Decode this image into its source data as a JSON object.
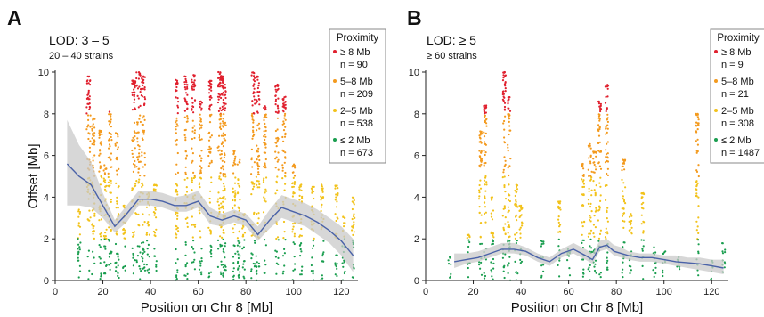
{
  "figure": {
    "ylabel": "Offset [Mb]",
    "xlabel": "Position on Chr 8 [Mb]",
    "legend_title": "Proximity",
    "colors": {
      "gt8": "#e0202e",
      "5to8": "#f39a1e",
      "2to5": "#f2c21b",
      "le2": "#1a9e4f",
      "fit": "#4a62a8",
      "ci": "#c9c9c9"
    }
  },
  "chart_data": [
    {
      "type": "scatter",
      "panel_letter": "A",
      "title": "LOD: 3 – 5",
      "subtitle": "20 – 40 strains",
      "xlabel": "Position on Chr 8 [Mb]",
      "ylabel": "Offset [Mb]",
      "xlim": [
        0,
        127
      ],
      "ylim": [
        0,
        10
      ],
      "xticks": [
        "0",
        "20",
        "40",
        "60",
        "80",
        "100",
        "120"
      ],
      "yticks": [
        "0",
        "2",
        "4",
        "6",
        "8",
        "10"
      ],
      "legend_position": "top-right",
      "legend": [
        {
          "label": "≥ 8  Mb",
          "count": "n = 90"
        },
        {
          "label": "5–8  Mb",
          "count": "n = 209"
        },
        {
          "label": "2–5  Mb",
          "count": "n = 538"
        },
        {
          "label": "≤ 2  Mb",
          "count": "n = 673"
        }
      ],
      "clusters": [
        {
          "x": 10,
          "max": 3.5,
          "w": 0.6
        },
        {
          "x": 14,
          "max": 9.8,
          "w": 0.8
        },
        {
          "x": 16,
          "max": 7.8,
          "w": 0.6
        },
        {
          "x": 19,
          "max": 7.2,
          "w": 0.6
        },
        {
          "x": 21,
          "max": 5.6,
          "w": 0.6
        },
        {
          "x": 23,
          "max": 8.1,
          "w": 0.7
        },
        {
          "x": 26,
          "max": 7.2,
          "w": 0.8
        },
        {
          "x": 29,
          "max": 3.6,
          "w": 0.6
        },
        {
          "x": 33,
          "max": 9.6,
          "w": 0.8
        },
        {
          "x": 35,
          "max": 10.0,
          "w": 1.0
        },
        {
          "x": 37,
          "max": 9.8,
          "w": 0.8
        },
        {
          "x": 39,
          "max": 4.2,
          "w": 0.6
        },
        {
          "x": 42,
          "max": 4.6,
          "w": 0.6
        },
        {
          "x": 51,
          "max": 9.8,
          "w": 0.6
        },
        {
          "x": 55,
          "max": 9.8,
          "w": 0.7
        },
        {
          "x": 58,
          "max": 9.9,
          "w": 0.7
        },
        {
          "x": 61,
          "max": 8.6,
          "w": 0.6
        },
        {
          "x": 65,
          "max": 9.6,
          "w": 0.7
        },
        {
          "x": 69,
          "max": 10.0,
          "w": 0.8
        },
        {
          "x": 70,
          "max": 9.8,
          "w": 0.6
        },
        {
          "x": 71,
          "max": 9.4,
          "w": 0.6
        },
        {
          "x": 75,
          "max": 6.3,
          "w": 0.6
        },
        {
          "x": 77,
          "max": 5.8,
          "w": 0.6
        },
        {
          "x": 79,
          "max": 3.2,
          "w": 0.6
        },
        {
          "x": 83,
          "max": 10.0,
          "w": 0.8
        },
        {
          "x": 85,
          "max": 9.8,
          "w": 0.7
        },
        {
          "x": 88,
          "max": 8.4,
          "w": 0.6
        },
        {
          "x": 93,
          "max": 9.4,
          "w": 0.7
        },
        {
          "x": 96,
          "max": 8.9,
          "w": 0.7
        },
        {
          "x": 100,
          "max": 5.6,
          "w": 0.6
        },
        {
          "x": 103,
          "max": 4.6,
          "w": 0.6
        },
        {
          "x": 108,
          "max": 4.6,
          "w": 0.6
        },
        {
          "x": 112,
          "max": 4.6,
          "w": 0.6
        },
        {
          "x": 118,
          "max": 4.6,
          "w": 0.6
        },
        {
          "x": 121,
          "max": 3.1,
          "w": 0.6
        },
        {
          "x": 125,
          "max": 4.0,
          "w": 0.6
        }
      ],
      "loess": {
        "x": [
          5,
          10,
          15,
          20,
          25,
          30,
          35,
          40,
          45,
          50,
          55,
          60,
          65,
          70,
          75,
          80,
          85,
          90,
          95,
          100,
          105,
          110,
          115,
          120,
          125
        ],
        "y": [
          5.6,
          5.0,
          4.6,
          3.6,
          2.6,
          3.2,
          3.9,
          3.9,
          3.8,
          3.6,
          3.6,
          3.8,
          3.1,
          2.9,
          3.1,
          2.9,
          2.2,
          2.9,
          3.5,
          3.3,
          3.1,
          2.8,
          2.4,
          1.9,
          1.2
        ],
        "lower": [
          3.6,
          3.6,
          3.5,
          3.0,
          2.3,
          2.8,
          3.6,
          3.6,
          3.5,
          3.3,
          3.3,
          3.5,
          2.7,
          2.6,
          2.8,
          2.6,
          1.9,
          2.5,
          3.0,
          2.8,
          2.6,
          2.2,
          1.8,
          1.2,
          0.4
        ],
        "upper": [
          7.7,
          6.5,
          5.7,
          4.2,
          2.9,
          3.6,
          4.3,
          4.3,
          4.2,
          4.0,
          4.1,
          4.3,
          3.5,
          3.2,
          3.4,
          3.2,
          2.6,
          3.4,
          4.1,
          3.9,
          3.7,
          3.4,
          3.0,
          2.6,
          2.0
        ]
      }
    },
    {
      "type": "scatter",
      "panel_letter": "B",
      "title": "LOD: ≥ 5",
      "subtitle": "≥ 60 strains",
      "xlabel": "Position on Chr 8 [Mb]",
      "ylabel": "Offset [Mb]",
      "xlim": [
        0,
        127
      ],
      "ylim": [
        0,
        10
      ],
      "xticks": [
        "0",
        "20",
        "40",
        "60",
        "80",
        "100",
        "120"
      ],
      "yticks": [
        "0",
        "2",
        "4",
        "6",
        "8",
        "10"
      ],
      "legend_position": "top-right",
      "legend": [
        {
          "label": "≥ 8  Mb",
          "count": "n = 9"
        },
        {
          "label": "5–8  Mb",
          "count": "n = 21"
        },
        {
          "label": "2–5  Mb",
          "count": "n = 308"
        },
        {
          "label": "≤ 2  Mb",
          "count": "n = 1487"
        }
      ],
      "clusters": [
        {
          "x": 10,
          "max": 1.2,
          "w": 0.6
        },
        {
          "x": 18,
          "max": 2.2,
          "w": 0.6
        },
        {
          "x": 23,
          "max": 7.2,
          "w": 0.6
        },
        {
          "x": 25,
          "max": 8.4,
          "w": 0.6
        },
        {
          "x": 28,
          "max": 4.0,
          "w": 0.6
        },
        {
          "x": 33,
          "max": 10.0,
          "w": 0.6
        },
        {
          "x": 35,
          "max": 8.8,
          "w": 0.6
        },
        {
          "x": 38,
          "max": 4.6,
          "w": 0.6
        },
        {
          "x": 40,
          "max": 3.6,
          "w": 0.6
        },
        {
          "x": 49,
          "max": 2.0,
          "w": 0.6
        },
        {
          "x": 56,
          "max": 3.8,
          "w": 0.6
        },
        {
          "x": 60,
          "max": 1.6,
          "w": 0.6
        },
        {
          "x": 66,
          "max": 5.6,
          "w": 0.6
        },
        {
          "x": 69,
          "max": 6.6,
          "w": 0.8
        },
        {
          "x": 71,
          "max": 6.2,
          "w": 0.7
        },
        {
          "x": 73,
          "max": 8.6,
          "w": 0.6
        },
        {
          "x": 76,
          "max": 9.4,
          "w": 0.6
        },
        {
          "x": 83,
          "max": 5.8,
          "w": 0.7
        },
        {
          "x": 86,
          "max": 3.2,
          "w": 0.6
        },
        {
          "x": 91,
          "max": 4.2,
          "w": 0.6
        },
        {
          "x": 96,
          "max": 1.6,
          "w": 0.6
        },
        {
          "x": 100,
          "max": 1.4,
          "w": 0.6
        },
        {
          "x": 106,
          "max": 1.2,
          "w": 0.6
        },
        {
          "x": 114,
          "max": 8.0,
          "w": 0.6
        },
        {
          "x": 120,
          "max": 1.0,
          "w": 0.6
        },
        {
          "x": 125,
          "max": 1.8,
          "w": 0.6
        }
      ],
      "loess": {
        "x": [
          12,
          17,
          22,
          27,
          32,
          37,
          42,
          47,
          52,
          57,
          62,
          67,
          70,
          73,
          76,
          79,
          82,
          85,
          90,
          95,
          100,
          105,
          110,
          115,
          120,
          125
        ],
        "y": [
          0.9,
          1.0,
          1.1,
          1.3,
          1.5,
          1.5,
          1.4,
          1.1,
          0.9,
          1.3,
          1.5,
          1.2,
          1.0,
          1.6,
          1.7,
          1.4,
          1.3,
          1.2,
          1.1,
          1.1,
          1.0,
          0.9,
          0.85,
          0.8,
          0.7,
          0.6
        ],
        "lower": [
          0.6,
          0.8,
          0.9,
          1.1,
          1.3,
          1.3,
          1.2,
          0.9,
          0.7,
          1.1,
          1.3,
          1.0,
          0.8,
          1.4,
          1.5,
          1.2,
          1.1,
          1.0,
          0.9,
          0.9,
          0.8,
          0.7,
          0.6,
          0.5,
          0.4,
          0.3
        ],
        "upper": [
          1.3,
          1.3,
          1.4,
          1.6,
          1.8,
          1.8,
          1.6,
          1.3,
          1.1,
          1.5,
          1.8,
          1.5,
          1.3,
          1.9,
          2.0,
          1.7,
          1.6,
          1.4,
          1.3,
          1.3,
          1.2,
          1.2,
          1.1,
          1.1,
          1.0,
          1.0
        ]
      }
    }
  ]
}
